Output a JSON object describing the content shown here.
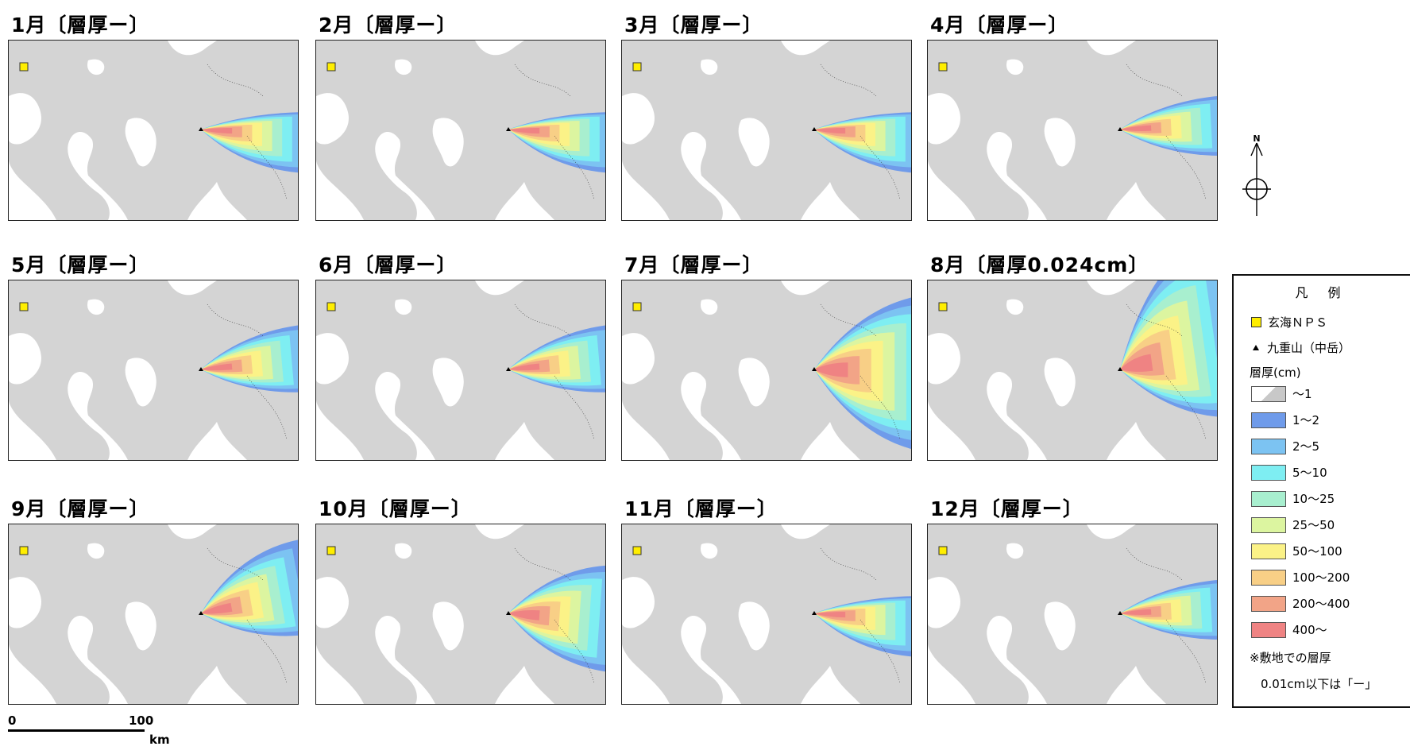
{
  "panels": [
    {
      "title": "1月〔層厚ー〕"
    },
    {
      "title": "2月〔層厚ー〕"
    },
    {
      "title": "3月〔層厚ー〕"
    },
    {
      "title": "4月〔層厚ー〕"
    },
    {
      "title": "5月〔層厚ー〕"
    },
    {
      "title": "6月〔層厚ー〕"
    },
    {
      "title": "7月〔層厚ー〕"
    },
    {
      "title": "8月〔層厚0.024cm〕"
    },
    {
      "title": "9月〔層厚ー〕"
    },
    {
      "title": "10月〔層厚ー〕"
    },
    {
      "title": "11月〔層厚ー〕"
    },
    {
      "title": "12月〔層厚ー〕"
    }
  ],
  "compass": {
    "north_label": "N"
  },
  "legend": {
    "title": "凡 例",
    "site_label": "玄海ＮＰＳ",
    "volcano_label": "九重山（中岳）",
    "thickness_header": "層厚(cm)",
    "classes": [
      {
        "label": "～1",
        "color": "#c8c8c8"
      },
      {
        "label": "1～2",
        "color": "#6f9bea"
      },
      {
        "label": "2～5",
        "color": "#7cc3f2"
      },
      {
        "label": "5～10",
        "color": "#7eeef2"
      },
      {
        "label": "10～25",
        "color": "#a8efcf"
      },
      {
        "label": "25～50",
        "color": "#dcf5a0"
      },
      {
        "label": "50～100",
        "color": "#fbf287"
      },
      {
        "label": "100～200",
        "color": "#f8cf86"
      },
      {
        "label": "200～400",
        "color": "#f2a487"
      },
      {
        "label": "400～",
        "color": "#ef8383"
      }
    ],
    "note_line1": "※敷地での層厚",
    "note_line2": "0.01cm以下は「ー」"
  },
  "scale": {
    "zero": "0",
    "max": "100",
    "unit": "km"
  },
  "colors": {
    "land": "#d4d4d4",
    "sea": "#ffffff",
    "site_marker": "#ffee00"
  }
}
